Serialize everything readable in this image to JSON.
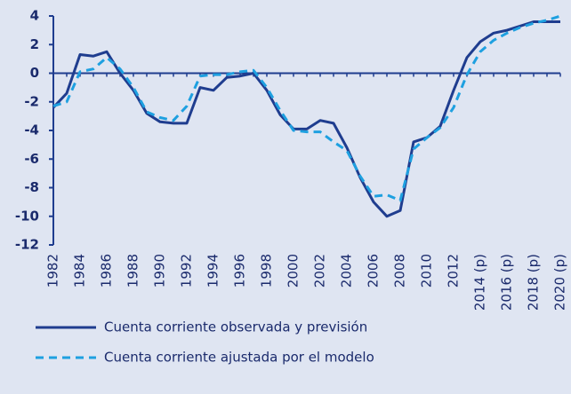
{
  "chart_data": {
    "type": "line",
    "categories": [
      "1982",
      null,
      "1984",
      null,
      "1986",
      null,
      "1988",
      null,
      "1990",
      null,
      "1992",
      null,
      "1994",
      null,
      "1996",
      null,
      "1998",
      null,
      "2000",
      null,
      "2002",
      null,
      "2004",
      null,
      "2006",
      null,
      "2008",
      null,
      "2010",
      null,
      "2012",
      null,
      "2014 (p)",
      null,
      "2016 (p)",
      null,
      "2018 (p)",
      null,
      "2020 (p)"
    ],
    "series": [
      {
        "name": "Cuenta corriente observada y previsión",
        "color": "#1f3d8f",
        "dash": false,
        "values": [
          -2.4,
          -1.4,
          1.3,
          1.2,
          1.5,
          0.0,
          -1.2,
          -2.8,
          -3.4,
          -3.5,
          -3.5,
          -1.0,
          -1.2,
          -0.3,
          -0.2,
          0.0,
          -1.2,
          -2.9,
          -3.9,
          -3.9,
          -3.3,
          -3.5,
          -5.2,
          -7.3,
          -9.0,
          -10.0,
          -9.6,
          -4.8,
          -4.5,
          -3.7,
          -1.2,
          1.1,
          2.2,
          2.8,
          3.0,
          3.3,
          3.6,
          3.6,
          3.6
        ]
      },
      {
        "name": "Cuenta corriente ajustada por el modelo",
        "color": "#1ea0e0",
        "dash": true,
        "values": [
          -2.3,
          -2.0,
          0.1,
          0.3,
          1.1,
          0.3,
          -1.0,
          -2.7,
          -3.1,
          -3.3,
          -2.3,
          -0.2,
          -0.1,
          -0.1,
          0.1,
          0.2,
          -1.0,
          -2.6,
          -4.0,
          -4.1,
          -4.1,
          -4.8,
          -5.4,
          -7.2,
          -8.6,
          -8.5,
          -8.9,
          -5.3,
          -4.5,
          -3.8,
          -2.4,
          -0.1,
          1.5,
          2.3,
          2.8,
          3.2,
          3.5,
          3.7,
          4.0
        ]
      }
    ],
    "ylim": [
      -12,
      4
    ],
    "yticks": [
      -12,
      -10,
      -8,
      -6,
      -4,
      -2,
      0,
      2,
      4
    ]
  }
}
